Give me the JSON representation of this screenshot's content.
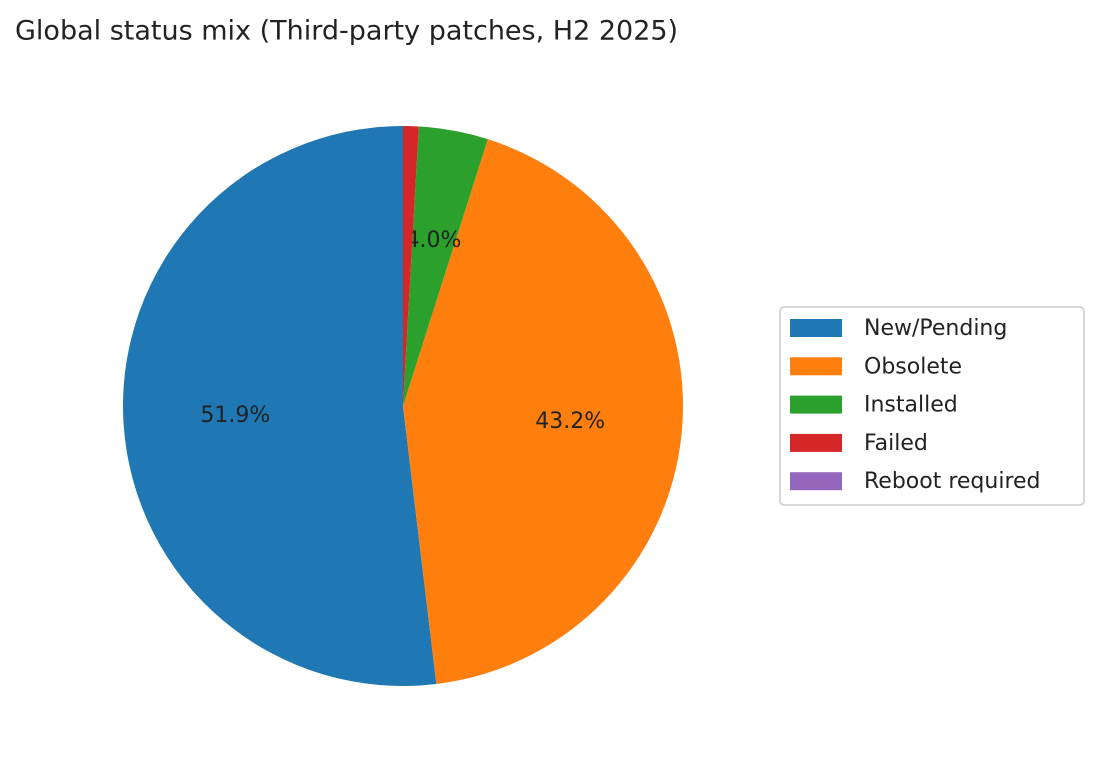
{
  "chart_data": {
    "type": "pie",
    "title": "Global status mix (Third-party patches, H2 2025)",
    "categories": [
      "New/Pending",
      "Obsolete",
      "Installed",
      "Failed",
      "Reboot required"
    ],
    "values": [
      51.9,
      43.2,
      4.0,
      0.9,
      0.0
    ],
    "value_labels": [
      "51.9%",
      "43.2%",
      "4.0%",
      null,
      null
    ],
    "colors": [
      "#1f77b4",
      "#ff7f0e",
      "#2ca02c",
      "#d62728",
      "#9467bd"
    ],
    "start_angle": 90,
    "counterclockwise": true,
    "legend": "right"
  }
}
